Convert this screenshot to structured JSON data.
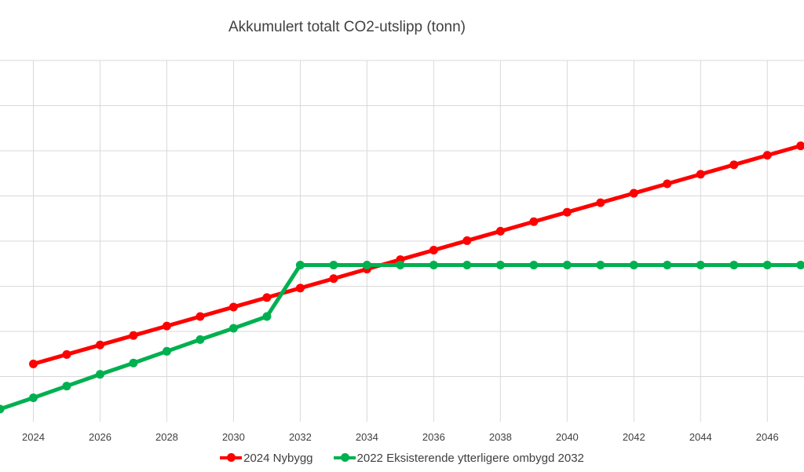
{
  "chart_data": {
    "type": "line",
    "title": "Akkumulert totalt CO2-utslipp (tonn)",
    "xlabel": "",
    "ylabel": "",
    "x": [
      2023,
      2024,
      2025,
      2026,
      2027,
      2028,
      2029,
      2030,
      2031,
      2032,
      2033,
      2034,
      2035,
      2036,
      2037,
      2038,
      2039,
      2040,
      2041,
      2042,
      2043,
      2044,
      2045,
      2046,
      2047
    ],
    "xticks": [
      "2024",
      "2026",
      "2028",
      "2030",
      "2032",
      "2034",
      "2036",
      "2038",
      "2040",
      "2042",
      "2044",
      "2046"
    ],
    "xlim": [
      2023,
      2047.1
    ],
    "ylim": [
      0,
      8
    ],
    "grid": true,
    "legend_position": "bottom",
    "series": [
      {
        "name": "2024 Nybygg",
        "color": "#ff0000",
        "values": [
          null,
          1.28,
          1.49,
          1.7,
          1.91,
          2.12,
          2.33,
          2.54,
          2.75,
          2.96,
          3.17,
          3.38,
          3.59,
          3.8,
          4.01,
          4.22,
          4.43,
          4.64,
          4.85,
          5.06,
          5.27,
          5.48,
          5.69,
          5.9,
          6.11
        ]
      },
      {
        "name": "2022 Eksisterende ytterligere ombygd 2032",
        "color": "#00b050",
        "values": [
          0.28,
          0.53,
          0.79,
          1.05,
          1.3,
          1.56,
          1.82,
          2.07,
          2.33,
          3.47,
          3.47,
          3.47,
          3.47,
          3.47,
          3.47,
          3.47,
          3.47,
          3.47,
          3.47,
          3.47,
          3.47,
          3.47,
          3.47,
          3.47,
          3.47
        ]
      }
    ]
  }
}
